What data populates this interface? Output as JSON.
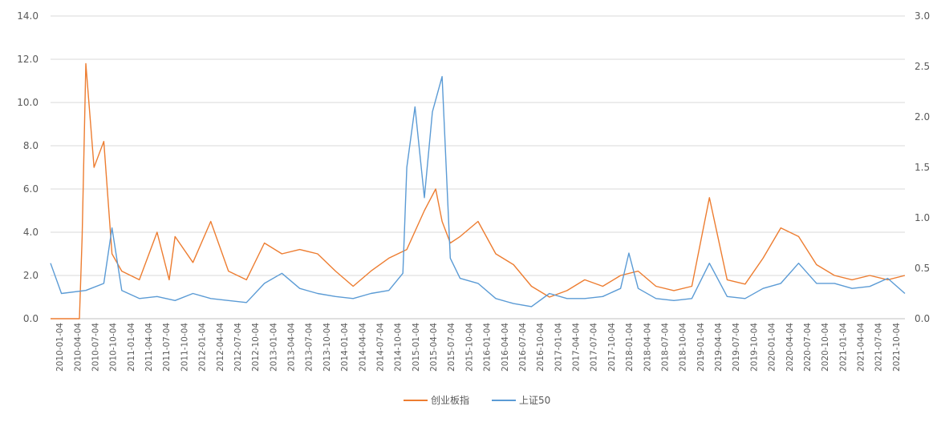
{
  "chart_data": {
    "type": "line",
    "title": "",
    "xlabel": "",
    "ylabel": "",
    "y_left_ticks": [
      "0.0",
      "2.0",
      "4.0",
      "6.0",
      "8.0",
      "10.0",
      "12.0",
      "14.0"
    ],
    "y_right_ticks": [
      "0.0",
      "0.5",
      "1.0",
      "1.5",
      "2.0",
      "2.5",
      "3.0"
    ],
    "ylim_left": [
      0,
      14
    ],
    "ylim_right": [
      0,
      3
    ],
    "grid": true,
    "legend_position": "bottom",
    "x_tick_labels": [
      "2010-01-04",
      "2010-04-04",
      "2010-07-04",
      "2010-10-04",
      "2011-01-04",
      "2011-04-04",
      "2011-07-04",
      "2011-10-04",
      "2012-01-04",
      "2012-04-04",
      "2012-07-04",
      "2012-10-04",
      "2013-01-04",
      "2013-04-04",
      "2013-07-04",
      "2013-10-04",
      "2014-01-04",
      "2014-04-04",
      "2014-07-04",
      "2014-10-04",
      "2015-01-04",
      "2015-04-04",
      "2015-07-04",
      "2015-10-04",
      "2016-01-04",
      "2016-04-04",
      "2016-07-04",
      "2016-10-04",
      "2017-01-04",
      "2017-04-04",
      "2017-07-04",
      "2017-10-04",
      "2018-01-04",
      "2018-04-04",
      "2018-07-04",
      "2018-10-04",
      "2019-01-04",
      "2019-04-04",
      "2019-07-04",
      "2019-10-04",
      "2020-01-04",
      "2020-04-04",
      "2020-07-04",
      "2020-10-04",
      "2021-01-04",
      "2021-04-04",
      "2021-07-04",
      "2021-10-04"
    ],
    "series": [
      {
        "name": "创业板指",
        "axis": "left",
        "color": "#ED7D31",
        "x": [
          "2010-01-04",
          "2010-06-01",
          "2010-06-15",
          "2010-07-04",
          "2010-08-15",
          "2010-10-04",
          "2010-11-15",
          "2011-01-04",
          "2011-04-04",
          "2011-07-04",
          "2011-09-04",
          "2011-10-04",
          "2012-01-04",
          "2012-04-04",
          "2012-07-04",
          "2012-10-04",
          "2013-01-04",
          "2013-04-04",
          "2013-07-04",
          "2013-10-04",
          "2014-01-04",
          "2014-04-04",
          "2014-07-04",
          "2014-10-04",
          "2015-01-04",
          "2015-04-04",
          "2015-06-01",
          "2015-07-04",
          "2015-08-15",
          "2015-10-04",
          "2016-01-04",
          "2016-04-04",
          "2016-07-04",
          "2016-10-04",
          "2017-01-04",
          "2017-04-04",
          "2017-07-04",
          "2017-10-04",
          "2018-01-04",
          "2018-04-04",
          "2018-07-04",
          "2018-10-04",
          "2019-01-04",
          "2019-04-04",
          "2019-07-04",
          "2019-10-04",
          "2020-01-04",
          "2020-04-04",
          "2020-07-04",
          "2020-10-04",
          "2021-01-04",
          "2021-04-04",
          "2021-07-04",
          "2021-10-04",
          "2021-12-31"
        ],
        "values": [
          0.0,
          0.0,
          3.8,
          11.8,
          7.0,
          8.2,
          3.0,
          2.2,
          1.8,
          4.0,
          1.8,
          3.8,
          2.6,
          4.5,
          2.2,
          1.8,
          3.5,
          3.0,
          3.2,
          3.0,
          2.2,
          1.5,
          2.2,
          2.8,
          3.2,
          5.0,
          6.0,
          4.5,
          3.5,
          3.8,
          4.5,
          3.0,
          2.5,
          1.5,
          1.0,
          1.3,
          1.8,
          1.5,
          2.0,
          2.2,
          1.5,
          1.3,
          1.5,
          5.6,
          1.8,
          1.6,
          2.8,
          4.2,
          3.8,
          2.5,
          2.0,
          1.8,
          2.0,
          1.8,
          2.0
        ]
      },
      {
        "name": "上证50",
        "axis": "right",
        "color": "#5B9BD5",
        "x": [
          "2010-01-04",
          "2010-03-01",
          "2010-07-04",
          "2010-10-04",
          "2010-11-15",
          "2011-01-04",
          "2011-04-04",
          "2011-07-04",
          "2011-10-04",
          "2012-01-04",
          "2012-04-04",
          "2012-07-04",
          "2012-10-04",
          "2013-01-04",
          "2013-04-04",
          "2013-07-04",
          "2013-10-04",
          "2014-01-04",
          "2014-04-04",
          "2014-07-04",
          "2014-10-04",
          "2014-12-15",
          "2015-01-04",
          "2015-02-15",
          "2015-04-04",
          "2015-05-15",
          "2015-07-04",
          "2015-08-15",
          "2015-10-04",
          "2016-01-04",
          "2016-04-04",
          "2016-07-04",
          "2016-10-04",
          "2017-01-04",
          "2017-04-04",
          "2017-07-04",
          "2017-10-04",
          "2018-01-04",
          "2018-02-15",
          "2018-04-04",
          "2018-07-04",
          "2018-10-04",
          "2019-01-04",
          "2019-04-04",
          "2019-07-04",
          "2019-10-04",
          "2020-01-04",
          "2020-04-04",
          "2020-07-04",
          "2020-10-04",
          "2021-01-04",
          "2021-04-04",
          "2021-07-04",
          "2021-10-04",
          "2021-12-31"
        ],
        "values": [
          0.55,
          0.25,
          0.28,
          0.35,
          0.9,
          0.28,
          0.2,
          0.22,
          0.18,
          0.25,
          0.2,
          0.18,
          0.16,
          0.35,
          0.45,
          0.3,
          0.25,
          0.22,
          0.2,
          0.25,
          0.28,
          0.45,
          1.5,
          2.1,
          1.2,
          2.05,
          2.4,
          0.6,
          0.4,
          0.35,
          0.2,
          0.15,
          0.12,
          0.25,
          0.2,
          0.2,
          0.22,
          0.3,
          0.65,
          0.3,
          0.2,
          0.18,
          0.2,
          0.55,
          0.22,
          0.2,
          0.3,
          0.35,
          0.55,
          0.35,
          0.35,
          0.3,
          0.32,
          0.4,
          0.25
        ]
      }
    ]
  }
}
